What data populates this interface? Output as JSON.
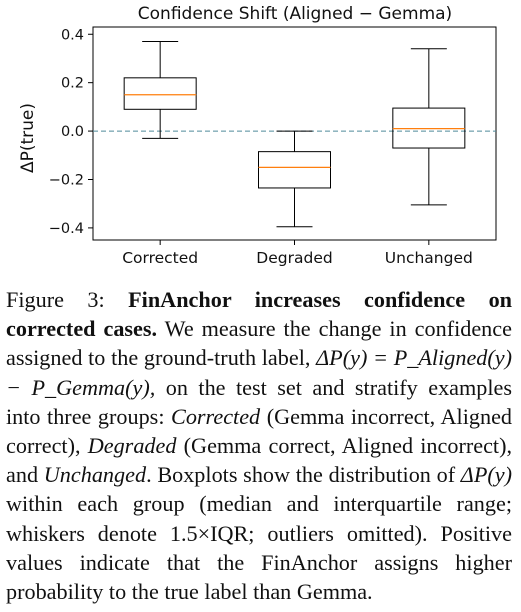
{
  "chart_data": {
    "type": "boxplot",
    "title": "Confidence Shift (Aligned − Gemma)",
    "ylabel": "ΔP(true)",
    "xlabel": "",
    "ylim": [
      -0.45,
      0.43
    ],
    "yticks": [
      0.4,
      0.2,
      0.0,
      -0.2,
      -0.4
    ],
    "ytick_labels": [
      "0.4",
      "0.2",
      "0.0",
      "−0.2",
      "−0.4"
    ],
    "reference_line": 0.0,
    "categories": [
      "Corrected",
      "Degraded",
      "Unchanged"
    ],
    "boxes": [
      {
        "whisker_low": -0.03,
        "q1": 0.09,
        "median": 0.15,
        "q3": 0.22,
        "whisker_high": 0.37
      },
      {
        "whisker_low": -0.395,
        "q1": -0.235,
        "median": -0.15,
        "q3": -0.085,
        "whisker_high": 0.0
      },
      {
        "whisker_low": -0.305,
        "q1": -0.07,
        "median": 0.01,
        "q3": 0.095,
        "whisker_high": 0.34
      }
    ],
    "colors": {
      "median": "#ff7f0e",
      "reference": "#4f8a9a",
      "box": "#000000"
    }
  },
  "caption": {
    "label": "Figure 3:",
    "bold": "FinAnchor increases confidence on corrected cases.",
    "text1": "We measure the change in confidence assigned to the ground-truth label,",
    "equation": "ΔP(y) = P_Aligned(y) − P_Gemma(y),",
    "text2": "on the test set and stratify examples into three groups:",
    "g1": "Corrected",
    "g1_desc": "(Gemma incorrect, Aligned correct),",
    "g2": "Degraded",
    "g2_desc": "(Gemma correct, Aligned incorrect), and",
    "g3": "Unchanged",
    "text3": ". Boxplots show the distribution of",
    "delta": "ΔP(y)",
    "text4": "within each group (median and interquartile range; whiskers denote 1.5×IQR; outliers omitted). Positive values indicate that the FinAnchor assigns higher probability to the true label than Gemma."
  }
}
